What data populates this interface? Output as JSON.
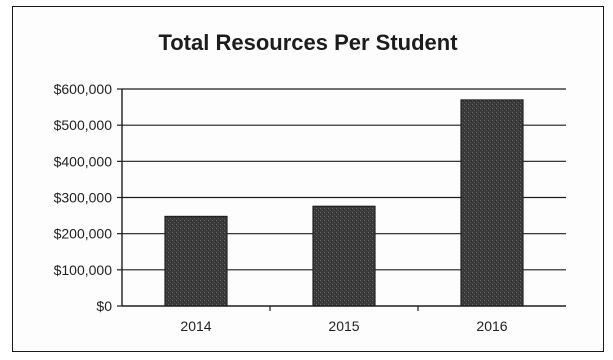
{
  "chart_data": {
    "type": "bar",
    "title": "Total Resources Per Student",
    "categories": [
      "2014",
      "2015",
      "2016"
    ],
    "values": [
      248000,
      276000,
      570000
    ],
    "xlabel": "",
    "ylabel": "",
    "ylim": [
      0,
      600000
    ],
    "yticks": [
      0,
      100000,
      200000,
      300000,
      400000,
      500000,
      600000
    ],
    "ytick_labels": [
      "$0",
      "$100,000",
      "$200,000",
      "$300,000",
      "$400,000",
      "$500,000",
      "$600,000"
    ],
    "grid": true,
    "legend": "none",
    "bar_color": "#3a3a3a"
  }
}
